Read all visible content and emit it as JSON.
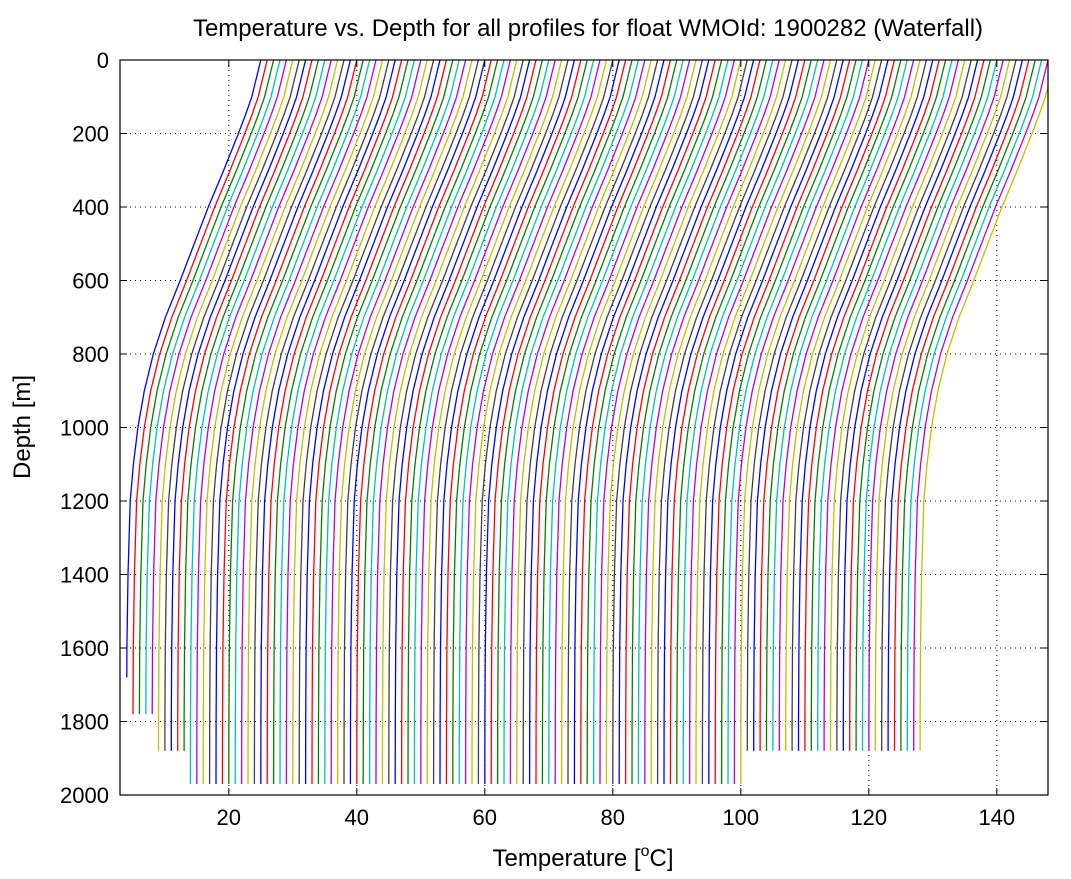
{
  "chart_data": {
    "type": "line",
    "title": "Temperature vs. Depth for all profiles for float WMOId: 1900282 (Waterfall)",
    "xlabel": "Temperature [",
    "xlabel_sup": "o",
    "xlabel_end": "C]",
    "ylabel": "Depth [m]",
    "xlim": [
      3,
      148
    ],
    "ylim": [
      0,
      2000
    ],
    "y_reversed": true,
    "grid": true,
    "xticks": [
      20,
      40,
      60,
      80,
      100,
      120,
      140
    ],
    "xtick_labels": [
      "20",
      "40",
      "60",
      "80",
      "100",
      "120",
      "140"
    ],
    "yticks": [
      0,
      200,
      400,
      600,
      800,
      1000,
      1200,
      1400,
      1600,
      1800,
      2000
    ],
    "ytick_labels": [
      "0",
      "200",
      "400",
      "600",
      "800",
      "1000",
      "1200",
      "1400",
      "1600",
      "1800",
      "2000"
    ],
    "colors": [
      "#0000ff",
      "#ff0000",
      "#008000",
      "#00bfbf",
      "#bf00bf",
      "#bfbf00",
      "#404040"
    ],
    "profile_shape": {
      "depths": [
        0,
        50,
        100,
        150,
        200,
        300,
        400,
        500,
        600,
        700,
        800,
        900,
        1000,
        1100,
        1200,
        1400,
        1600,
        1800,
        2000
      ],
      "offsets": [
        21,
        20.3,
        19.6,
        18.6,
        17.5,
        15.2,
        12.8,
        10.6,
        8.4,
        6.1,
        4.2,
        2.8,
        1.8,
        1.1,
        0.6,
        0.25,
        0.08,
        0.02,
        0
      ]
    },
    "series": [
      {
        "deep_temp": 4.0,
        "max_depth": 1680
      },
      {
        "deep_temp": 5.0,
        "max_depth": 1780
      },
      {
        "deep_temp": 6.0,
        "max_depth": 1780
      },
      {
        "deep_temp": 7.0,
        "max_depth": 1780
      },
      {
        "deep_temp": 8.0,
        "max_depth": 1780
      },
      {
        "deep_temp": 9.0,
        "max_depth": 1880
      },
      {
        "deep_temp": 10.0,
        "max_depth": 1880
      },
      {
        "deep_temp": 11.0,
        "max_depth": 1880
      },
      {
        "deep_temp": 12.0,
        "max_depth": 1880
      },
      {
        "deep_temp": 13.0,
        "max_depth": 1880
      },
      {
        "deep_temp": 14.0,
        "max_depth": 1970
      },
      {
        "deep_temp": 15.0,
        "max_depth": 1970
      },
      {
        "deep_temp": 16.0,
        "max_depth": 1970
      },
      {
        "deep_temp": 17.0,
        "max_depth": 1970
      },
      {
        "deep_temp": 18.0,
        "max_depth": 1970
      },
      {
        "deep_temp": 19.0,
        "max_depth": 1970
      },
      {
        "deep_temp": 20.0,
        "max_depth": 1970
      },
      {
        "deep_temp": 21.0,
        "max_depth": 1970
      },
      {
        "deep_temp": 22.0,
        "max_depth": 1970
      },
      {
        "deep_temp": 23.0,
        "max_depth": 1970
      },
      {
        "deep_temp": 24.0,
        "max_depth": 1970
      },
      {
        "deep_temp": 25.0,
        "max_depth": 1970
      },
      {
        "deep_temp": 26.0,
        "max_depth": 1970
      },
      {
        "deep_temp": 27.0,
        "max_depth": 1970
      },
      {
        "deep_temp": 28.0,
        "max_depth": 1970
      },
      {
        "deep_temp": 29.0,
        "max_depth": 1970
      },
      {
        "deep_temp": 30.0,
        "max_depth": 1970
      },
      {
        "deep_temp": 31.0,
        "max_depth": 1970
      },
      {
        "deep_temp": 32.0,
        "max_depth": 1970
      },
      {
        "deep_temp": 33.0,
        "max_depth": 1970
      },
      {
        "deep_temp": 34.0,
        "max_depth": 1970
      },
      {
        "deep_temp": 35.0,
        "max_depth": 1970
      },
      {
        "deep_temp": 36.0,
        "max_depth": 1970
      },
      {
        "deep_temp": 37.0,
        "max_depth": 1970
      },
      {
        "deep_temp": 38.0,
        "max_depth": 1970
      },
      {
        "deep_temp": 39.0,
        "max_depth": 1970
      },
      {
        "deep_temp": 40.0,
        "max_depth": 1970
      },
      {
        "deep_temp": 41.0,
        "max_depth": 1970
      },
      {
        "deep_temp": 42.0,
        "max_depth": 1970
      },
      {
        "deep_temp": 43.0,
        "max_depth": 1970
      },
      {
        "deep_temp": 44.0,
        "max_depth": 1970
      },
      {
        "deep_temp": 45.0,
        "max_depth": 1970
      },
      {
        "deep_temp": 46.0,
        "max_depth": 1970
      },
      {
        "deep_temp": 47.0,
        "max_depth": 1970
      },
      {
        "deep_temp": 48.0,
        "max_depth": 1970
      },
      {
        "deep_temp": 49.0,
        "max_depth": 1970
      },
      {
        "deep_temp": 50.0,
        "max_depth": 1970
      },
      {
        "deep_temp": 51.0,
        "max_depth": 1970
      },
      {
        "deep_temp": 52.0,
        "max_depth": 1970
      },
      {
        "deep_temp": 53.0,
        "max_depth": 1970
      },
      {
        "deep_temp": 54.0,
        "max_depth": 1970
      },
      {
        "deep_temp": 55.0,
        "max_depth": 1970
      },
      {
        "deep_temp": 56.0,
        "max_depth": 1970
      },
      {
        "deep_temp": 57.0,
        "max_depth": 1970
      },
      {
        "deep_temp": 58.0,
        "max_depth": 1970
      },
      {
        "deep_temp": 59.0,
        "max_depth": 1970
      },
      {
        "deep_temp": 60.0,
        "max_depth": 1970
      },
      {
        "deep_temp": 61.0,
        "max_depth": 1970
      },
      {
        "deep_temp": 62.0,
        "max_depth": 1970
      },
      {
        "deep_temp": 63.0,
        "max_depth": 1970
      },
      {
        "deep_temp": 64.0,
        "max_depth": 1970
      },
      {
        "deep_temp": 65.0,
        "max_depth": 1970
      },
      {
        "deep_temp": 66.0,
        "max_depth": 1970
      },
      {
        "deep_temp": 67.0,
        "max_depth": 1970
      },
      {
        "deep_temp": 68.0,
        "max_depth": 1970
      },
      {
        "deep_temp": 69.0,
        "max_depth": 1970
      },
      {
        "deep_temp": 70.0,
        "max_depth": 1970
      },
      {
        "deep_temp": 71.0,
        "max_depth": 1970
      },
      {
        "deep_temp": 72.0,
        "max_depth": 1970
      },
      {
        "deep_temp": 73.0,
        "max_depth": 1970
      },
      {
        "deep_temp": 74.0,
        "max_depth": 1970
      },
      {
        "deep_temp": 75.0,
        "max_depth": 1970
      },
      {
        "deep_temp": 76.0,
        "max_depth": 1970
      },
      {
        "deep_temp": 77.0,
        "max_depth": 1970
      },
      {
        "deep_temp": 78.0,
        "max_depth": 1970
      },
      {
        "deep_temp": 79.0,
        "max_depth": 1970
      },
      {
        "deep_temp": 80.0,
        "max_depth": 1970
      },
      {
        "deep_temp": 81.0,
        "max_depth": 1970
      },
      {
        "deep_temp": 82.0,
        "max_depth": 1970
      },
      {
        "deep_temp": 83.0,
        "max_depth": 1970
      },
      {
        "deep_temp": 84.0,
        "max_depth": 1970
      },
      {
        "deep_temp": 85.0,
        "max_depth": 1970
      },
      {
        "deep_temp": 86.0,
        "max_depth": 1970
      },
      {
        "deep_temp": 87.0,
        "max_depth": 1970
      },
      {
        "deep_temp": 88.0,
        "max_depth": 1970
      },
      {
        "deep_temp": 89.0,
        "max_depth": 1970
      },
      {
        "deep_temp": 90.0,
        "max_depth": 1970
      },
      {
        "deep_temp": 91.0,
        "max_depth": 1970
      },
      {
        "deep_temp": 92.0,
        "max_depth": 1970
      },
      {
        "deep_temp": 93.0,
        "max_depth": 1970
      },
      {
        "deep_temp": 94.0,
        "max_depth": 1970
      },
      {
        "deep_temp": 95.0,
        "max_depth": 1970
      },
      {
        "deep_temp": 96.0,
        "max_depth": 1970
      },
      {
        "deep_temp": 97.0,
        "max_depth": 1970
      },
      {
        "deep_temp": 98.0,
        "max_depth": 1970
      },
      {
        "deep_temp": 99.0,
        "max_depth": 1970
      },
      {
        "deep_temp": 100.0,
        "max_depth": 1970
      },
      {
        "deep_temp": 101.0,
        "max_depth": 1880
      },
      {
        "deep_temp": 102.0,
        "max_depth": 1880
      },
      {
        "deep_temp": 103.0,
        "max_depth": 1880
      },
      {
        "deep_temp": 104.0,
        "max_depth": 1880
      },
      {
        "deep_temp": 105.0,
        "max_depth": 1880
      },
      {
        "deep_temp": 106.0,
        "max_depth": 1880
      },
      {
        "deep_temp": 107.0,
        "max_depth": 1880
      },
      {
        "deep_temp": 108.0,
        "max_depth": 1880
      },
      {
        "deep_temp": 109.0,
        "max_depth": 1880
      },
      {
        "deep_temp": 110.0,
        "max_depth": 1880
      },
      {
        "deep_temp": 111.0,
        "max_depth": 1880
      },
      {
        "deep_temp": 112.0,
        "max_depth": 1880
      },
      {
        "deep_temp": 113.0,
        "max_depth": 1880
      },
      {
        "deep_temp": 114.0,
        "max_depth": 1880
      },
      {
        "deep_temp": 115.0,
        "max_depth": 1880
      },
      {
        "deep_temp": 116.0,
        "max_depth": 1880
      },
      {
        "deep_temp": 117.0,
        "max_depth": 1880
      },
      {
        "deep_temp": 118.0,
        "max_depth": 1880
      },
      {
        "deep_temp": 119.0,
        "max_depth": 1880
      },
      {
        "deep_temp": 120.0,
        "max_depth": 1880
      },
      {
        "deep_temp": 121.0,
        "max_depth": 1880
      },
      {
        "deep_temp": 122.0,
        "max_depth": 1880
      },
      {
        "deep_temp": 123.0,
        "max_depth": 1880
      },
      {
        "deep_temp": 124.0,
        "max_depth": 1880
      },
      {
        "deep_temp": 125.0,
        "max_depth": 1880
      },
      {
        "deep_temp": 126.0,
        "max_depth": 1880
      },
      {
        "deep_temp": 127.0,
        "max_depth": 1880
      },
      {
        "deep_temp": 128.0,
        "max_depth": 1880
      }
    ]
  }
}
